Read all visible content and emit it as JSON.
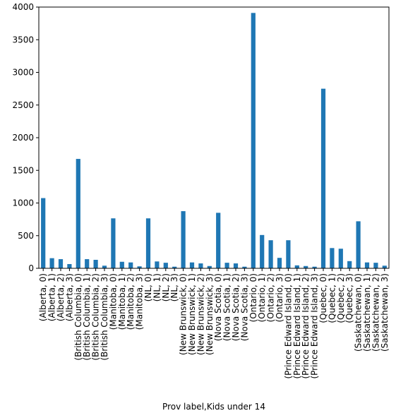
{
  "chart_data": {
    "type": "bar",
    "title": "",
    "xlabel": "Prov label,Kids under 14",
    "ylabel": "",
    "ylim": [
      0,
      4000
    ],
    "yticks": [
      0,
      500,
      1000,
      1500,
      2000,
      2500,
      3000,
      3500,
      4000
    ],
    "grid": false,
    "bar_color": "#1f77b4",
    "categories": [
      "(Alberta, 0)",
      "(Alberta, 1)",
      "(Alberta, 2)",
      "(Alberta, 3)",
      "(British Columbia, 0)",
      "(British Columbia, 1)",
      "(British Columbia, 2)",
      "(British Columbia, 3)",
      "(Manitoba, 0)",
      "(Manitoba, 1)",
      "(Manitoba, 2)",
      "(Manitoba, 3)",
      "(NL, 0)",
      "(NL, 1)",
      "(NL, 2)",
      "(NL, 3)",
      "(New Brunswick, 0)",
      "(New Brunswick, 1)",
      "(New Brunswick, 2)",
      "(New Brunswick, 3)",
      "(Nova Scotia, 0)",
      "(Nova Scotia, 1)",
      "(Nova Scotia, 2)",
      "(Nova Scotia, 3)",
      "(Ontario, 0)",
      "(Ontario, 1)",
      "(Ontario, 2)",
      "(Ontario, 3)",
      "(Prince Edward Island, 0)",
      "(Prince Edward Island, 1)",
      "(Prince Edward Island, 2)",
      "(Prince Edward Island, 3)",
      "(Quebec, 0)",
      "(Quebec, 1)",
      "(Quebec, 2)",
      "(Quebec, 3)",
      "(Saskatchewan, 0)",
      "(Saskatchewan, 1)",
      "(Saskatchewan, 2)",
      "(Saskatchewan, 3)"
    ],
    "values": [
      1075,
      155,
      140,
      65,
      1675,
      140,
      130,
      40,
      765,
      100,
      90,
      30,
      765,
      105,
      85,
      25,
      875,
      90,
      75,
      35,
      850,
      85,
      75,
      25,
      3910,
      510,
      430,
      160,
      430,
      45,
      35,
      25,
      2750,
      310,
      300,
      110,
      720,
      90,
      85,
      40
    ]
  }
}
